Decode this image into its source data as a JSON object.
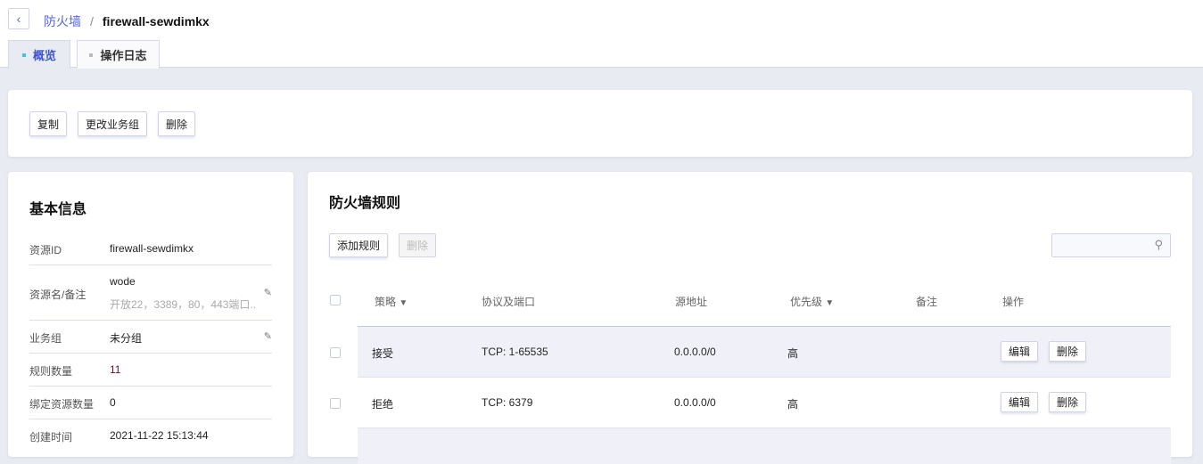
{
  "breadcrumb": {
    "parent": "防火墙",
    "separator": "/",
    "current": "firewall-sewdimkx"
  },
  "tabs": [
    {
      "label": "概览",
      "active": true
    },
    {
      "label": "操作日志",
      "active": false
    }
  ],
  "actions": {
    "copy": "复制",
    "change_group": "更改业务组",
    "delete": "删除"
  },
  "basic_info": {
    "title": "基本信息",
    "rows": [
      {
        "label": "资源ID",
        "value": "firewall-sewdimkx"
      },
      {
        "label": "资源名/备注",
        "value": "wode",
        "note": "开放22，3389，80，443端口..."
      },
      {
        "label": "业务组",
        "value": "未分组"
      },
      {
        "label": "规则数量",
        "value": "11"
      },
      {
        "label": "绑定资源数量",
        "value": "0"
      },
      {
        "label": "创建时间",
        "value": "2021-11-22 15:13:44"
      }
    ]
  },
  "rules": {
    "title": "防火墙规则",
    "add_label": "添加规则",
    "delete_label": "删除",
    "search_placeholder": "",
    "columns": [
      "策略",
      "协议及端口",
      "源地址",
      "优先级",
      "备注",
      "操作"
    ],
    "rows": [
      {
        "policy": "接受",
        "protocol": "TCP: 1-65535",
        "source": "0.0.0.0/0",
        "priority": "高",
        "note": "",
        "edit": "编辑",
        "delete": "删除"
      },
      {
        "policy": "拒绝",
        "protocol": "TCP: 6379",
        "source": "0.0.0.0/0",
        "priority": "高",
        "note": "",
        "edit": "编辑",
        "delete": "删除"
      }
    ]
  }
}
